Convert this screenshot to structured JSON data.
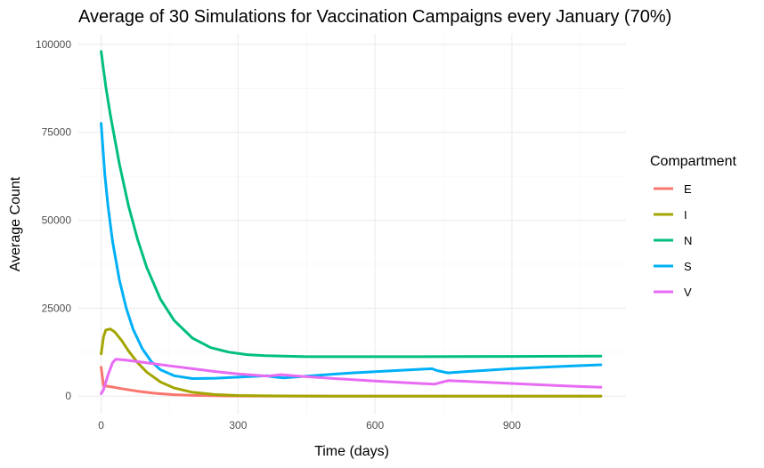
{
  "chart_data": {
    "type": "line",
    "title": "Average of 30 Simulations for Vaccination Campaigns every January (70%)",
    "xlabel": "Time (days)",
    "ylabel": "Average Count",
    "xlim": [
      -50,
      1150
    ],
    "ylim": [
      -5000,
      103000
    ],
    "x_ticks": [
      0,
      300,
      600,
      900
    ],
    "y_ticks": [
      0,
      25000,
      50000,
      75000,
      100000
    ],
    "x_tick_labels": [
      "0",
      "300",
      "600",
      "900"
    ],
    "y_tick_labels": [
      "0",
      "25000",
      "50000",
      "75000",
      "100000"
    ],
    "grid": true,
    "legend": {
      "title": "Compartment",
      "position": "right"
    },
    "series": [
      {
        "name": "E",
        "color": "#F8766D",
        "points": [
          [
            0,
            8200
          ],
          [
            5,
            3000
          ],
          [
            20,
            2700
          ],
          [
            50,
            2000
          ],
          [
            80,
            1400
          ],
          [
            120,
            800
          ],
          [
            160,
            400
          ],
          [
            200,
            200
          ],
          [
            260,
            80
          ],
          [
            330,
            30
          ],
          [
            450,
            10
          ],
          [
            600,
            0
          ],
          [
            800,
            0
          ],
          [
            1095,
            0
          ]
        ]
      },
      {
        "name": "I",
        "color": "#A3A500",
        "points": [
          [
            0,
            12000
          ],
          [
            5,
            16800
          ],
          [
            10,
            18800
          ],
          [
            20,
            19100
          ],
          [
            30,
            18200
          ],
          [
            45,
            15800
          ],
          [
            60,
            12800
          ],
          [
            80,
            9500
          ],
          [
            100,
            6800
          ],
          [
            130,
            4000
          ],
          [
            160,
            2300
          ],
          [
            200,
            1100
          ],
          [
            250,
            450
          ],
          [
            300,
            180
          ],
          [
            380,
            60
          ],
          [
            500,
            10
          ],
          [
            700,
            0
          ],
          [
            900,
            0
          ],
          [
            1095,
            0
          ]
        ]
      },
      {
        "name": "N",
        "color": "#00BF7D",
        "points": [
          [
            0,
            98000
          ],
          [
            10,
            88000
          ],
          [
            20,
            80000
          ],
          [
            40,
            66000
          ],
          [
            60,
            54000
          ],
          [
            80,
            44500
          ],
          [
            100,
            36500
          ],
          [
            130,
            27500
          ],
          [
            160,
            21500
          ],
          [
            200,
            16500
          ],
          [
            240,
            13800
          ],
          [
            280,
            12500
          ],
          [
            320,
            11800
          ],
          [
            360,
            11500
          ],
          [
            450,
            11200
          ],
          [
            550,
            11200
          ],
          [
            700,
            11200
          ],
          [
            900,
            11300
          ],
          [
            1095,
            11400
          ]
        ]
      },
      {
        "name": "S",
        "color": "#00B0F6",
        "points": [
          [
            0,
            77500
          ],
          [
            8,
            63000
          ],
          [
            15,
            54000
          ],
          [
            25,
            44000
          ],
          [
            40,
            33000
          ],
          [
            55,
            25000
          ],
          [
            70,
            19000
          ],
          [
            90,
            13500
          ],
          [
            110,
            9800
          ],
          [
            130,
            7500
          ],
          [
            160,
            5800
          ],
          [
            200,
            5000
          ],
          [
            250,
            5100
          ],
          [
            300,
            5400
          ],
          [
            365,
            5800
          ],
          [
            370,
            5600
          ],
          [
            400,
            5200
          ],
          [
            450,
            5700
          ],
          [
            550,
            6600
          ],
          [
            650,
            7300
          ],
          [
            725,
            7800
          ],
          [
            735,
            7300
          ],
          [
            760,
            6600
          ],
          [
            800,
            7000
          ],
          [
            900,
            7800
          ],
          [
            1000,
            8400
          ],
          [
            1095,
            8900
          ]
        ]
      },
      {
        "name": "V",
        "color": "#E76BF3",
        "points": [
          [
            0,
            700
          ],
          [
            5,
            1800
          ],
          [
            15,
            6000
          ],
          [
            25,
            9500
          ],
          [
            32,
            10500
          ],
          [
            50,
            10300
          ],
          [
            100,
            9500
          ],
          [
            150,
            8600
          ],
          [
            200,
            7800
          ],
          [
            250,
            7000
          ],
          [
            300,
            6300
          ],
          [
            365,
            5700
          ],
          [
            380,
            5900
          ],
          [
            395,
            6100
          ],
          [
            420,
            5800
          ],
          [
            500,
            5100
          ],
          [
            600,
            4300
          ],
          [
            700,
            3600
          ],
          [
            730,
            3400
          ],
          [
            745,
            3900
          ],
          [
            760,
            4400
          ],
          [
            800,
            4200
          ],
          [
            900,
            3600
          ],
          [
            1000,
            3000
          ],
          [
            1095,
            2500
          ]
        ]
      }
    ]
  }
}
